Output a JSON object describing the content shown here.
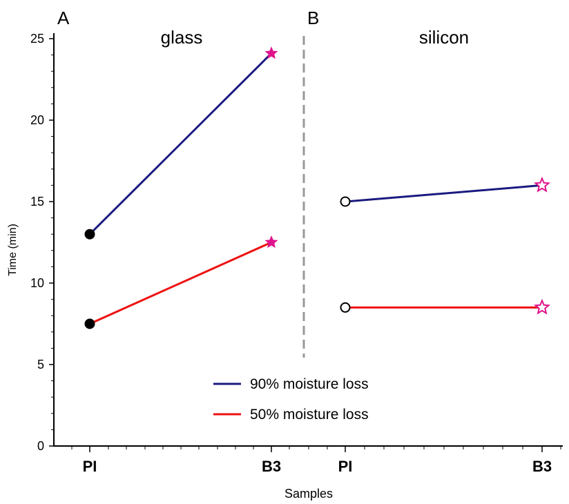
{
  "chart_data": {
    "type": "line",
    "xlabel": "Samples",
    "ylabel": "Time (min)",
    "ylim": [
      0,
      25
    ],
    "yticks": [
      0,
      5,
      10,
      15,
      20,
      25
    ],
    "grid": false,
    "legend_position": "bottom-center",
    "legend": [
      {
        "label": "90% moisture loss",
        "color": "#1a1a80"
      },
      {
        "label": "50% moisture loss",
        "color": "#ee1111"
      }
    ],
    "panels": [
      {
        "letter": "A",
        "title": "glass",
        "categories": [
          "PI",
          "B3"
        ],
        "marker_style": "filled",
        "series": [
          {
            "name": "90% moisture loss",
            "color": "#1a1a80",
            "values": [
              13.0,
              24.1
            ]
          },
          {
            "name": "50% moisture loss",
            "color": "#ee1111",
            "values": [
              7.5,
              12.5
            ]
          }
        ]
      },
      {
        "letter": "B",
        "title": "silicon",
        "categories": [
          "PI",
          "B3"
        ],
        "marker_style": "open",
        "series": [
          {
            "name": "90% moisture loss",
            "color": "#1a1a80",
            "values": [
              15.0,
              16.0
            ]
          },
          {
            "name": "50% moisture loss",
            "color": "#ee1111",
            "values": [
              8.5,
              8.5
            ]
          }
        ]
      }
    ],
    "marker_colors": {
      "PI": "#000000",
      "B3": "#e0138c"
    },
    "divider_color": "#999999"
  }
}
